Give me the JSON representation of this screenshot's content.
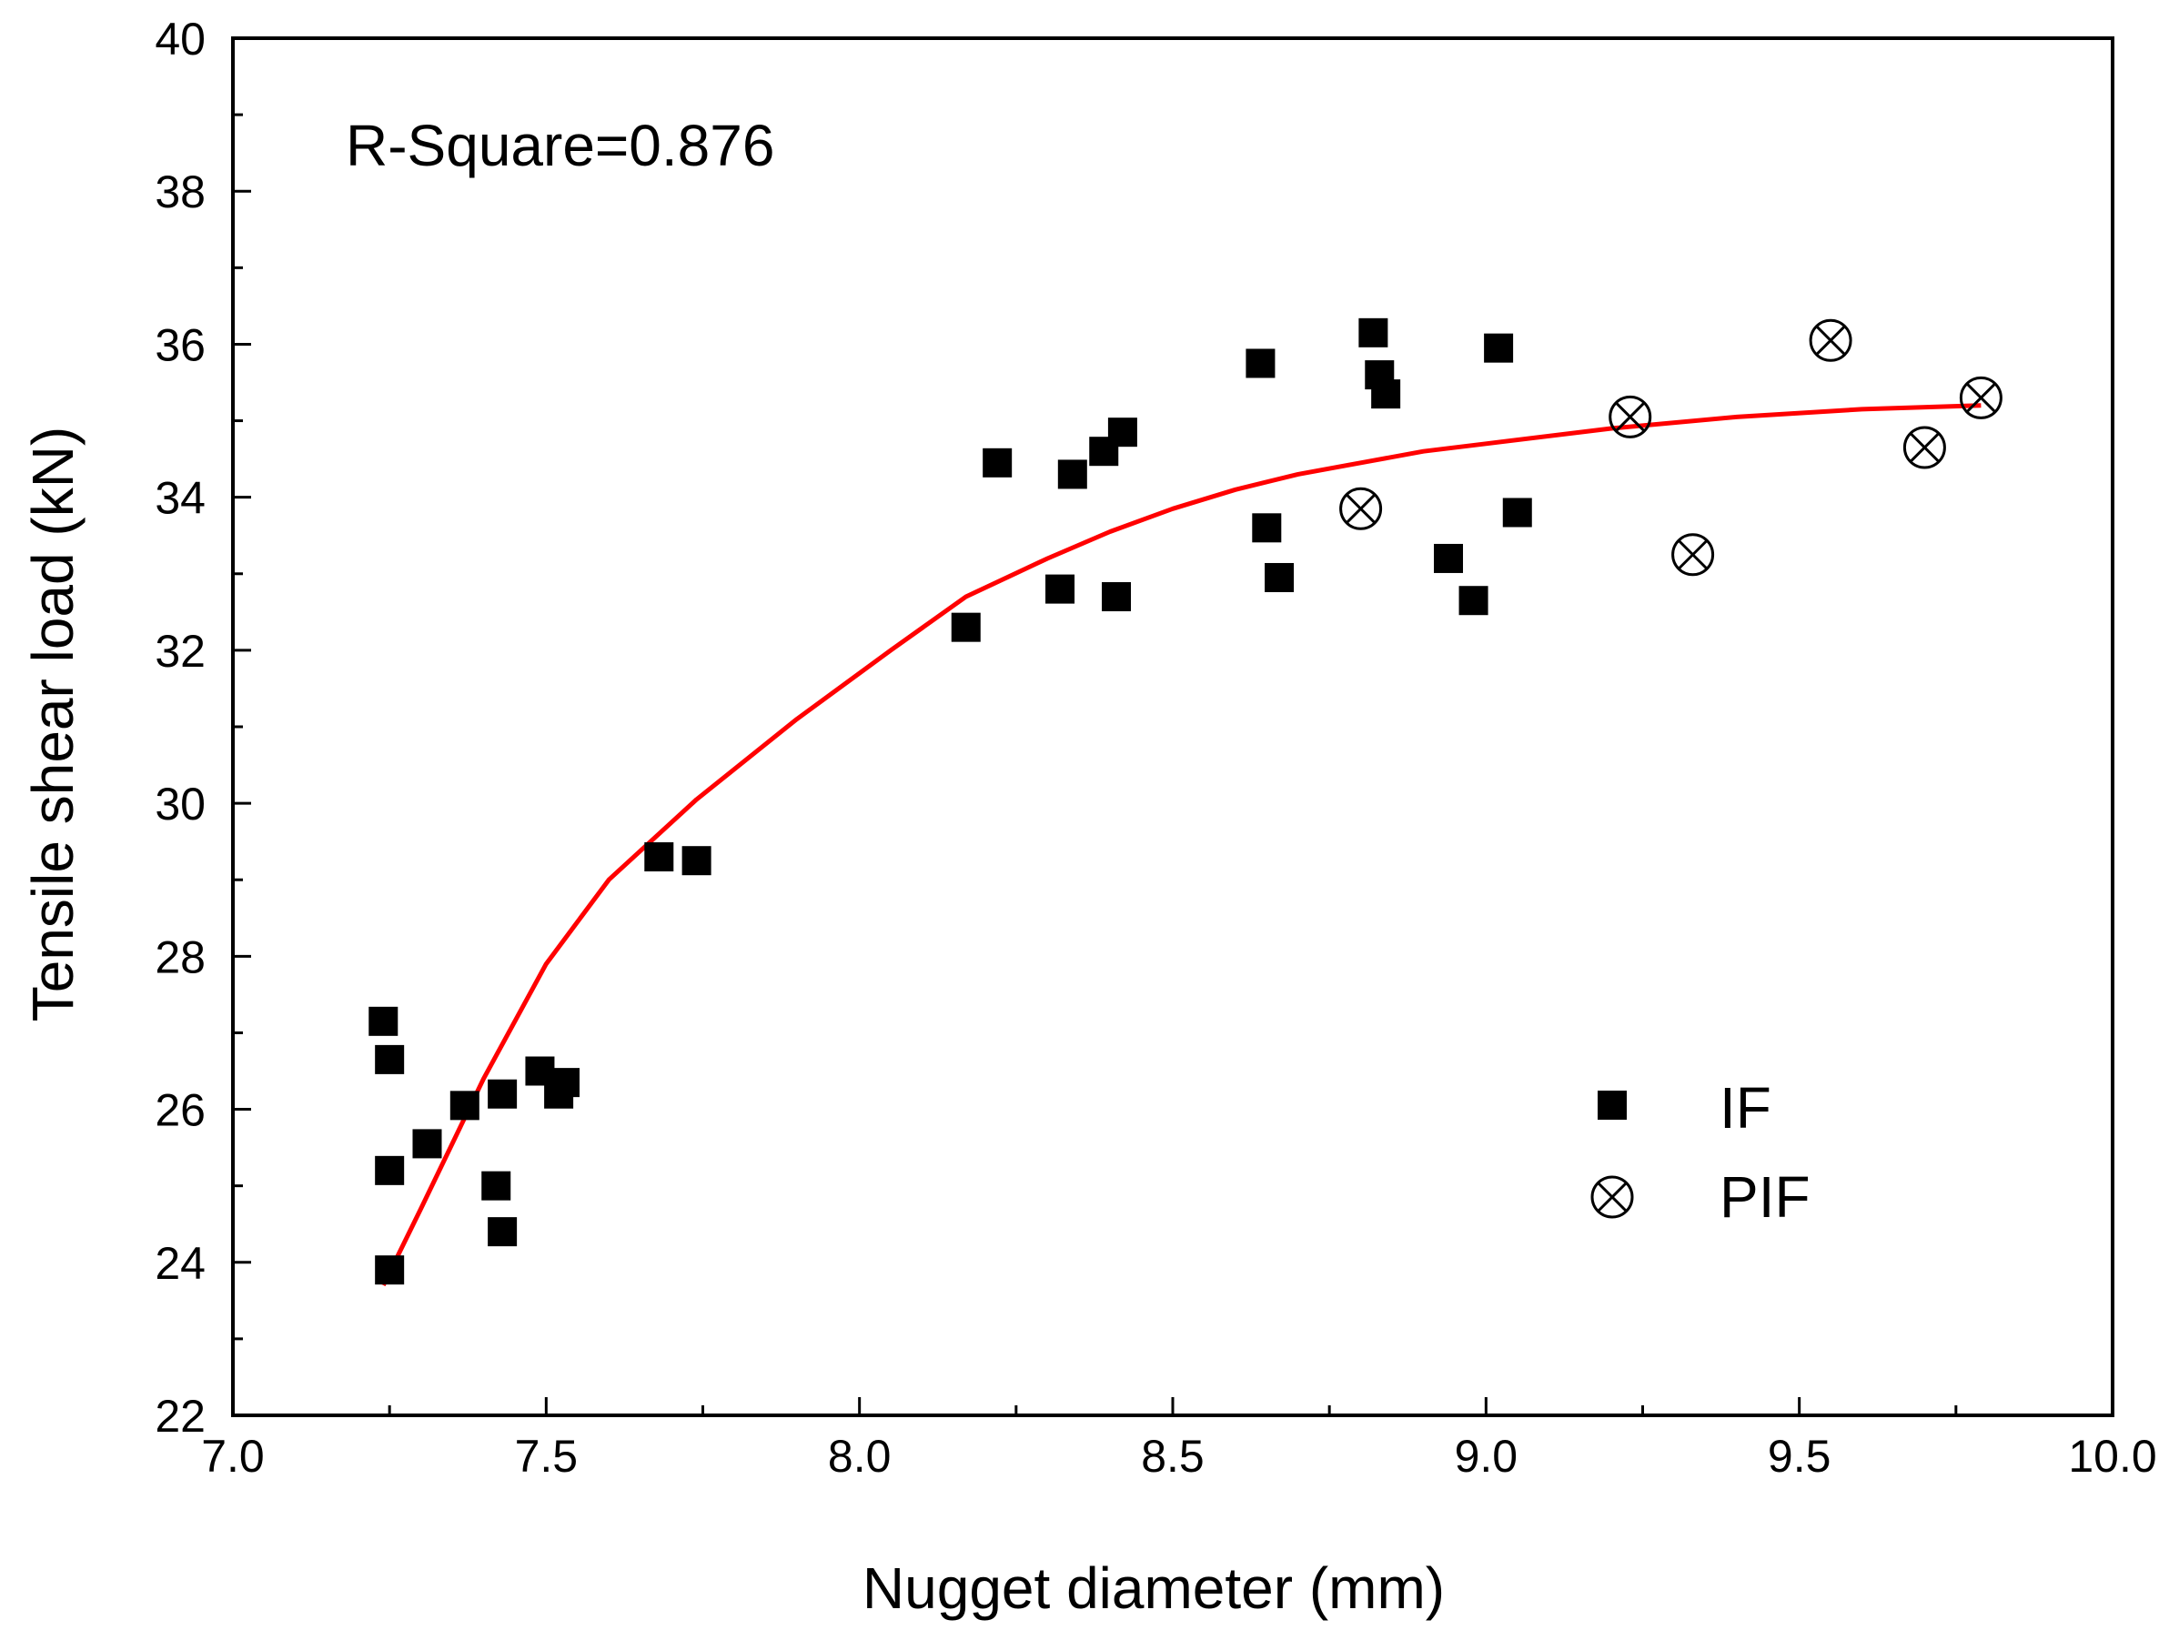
{
  "chart_data": {
    "type": "scatter",
    "title": "",
    "xlabel": "Nugget diameter (mm)",
    "ylabel": "Tensile shear load (kN)",
    "xlim": [
      7.0,
      10.0
    ],
    "ylim": [
      22,
      40
    ],
    "x_ticks": [
      "7.0",
      "7.5",
      "8.0",
      "8.5",
      "9.0",
      "9.5",
      "10.0"
    ],
    "y_ticks": [
      "22",
      "24",
      "26",
      "28",
      "30",
      "32",
      "34",
      "36",
      "38",
      "40"
    ],
    "annotation": "R-Square=0.876",
    "legend_position": "bottom-right",
    "colors": {
      "fit": "#ff0000",
      "markers": "#000000"
    },
    "series": [
      {
        "name": "IF",
        "marker": "filled-square",
        "points": [
          [
            7.24,
            27.15
          ],
          [
            7.25,
            26.65
          ],
          [
            7.25,
            25.2
          ],
          [
            7.25,
            23.9
          ],
          [
            7.31,
            25.55
          ],
          [
            7.37,
            26.05
          ],
          [
            7.42,
            25.0
          ],
          [
            7.43,
            24.4
          ],
          [
            7.43,
            26.2
          ],
          [
            7.49,
            26.5
          ],
          [
            7.52,
            26.2
          ],
          [
            7.53,
            26.35
          ],
          [
            7.68,
            29.3
          ],
          [
            7.74,
            29.25
          ],
          [
            8.17,
            32.3
          ],
          [
            8.22,
            34.45
          ],
          [
            8.32,
            32.8
          ],
          [
            8.34,
            34.3
          ],
          [
            8.39,
            34.6
          ],
          [
            8.41,
            32.7
          ],
          [
            8.42,
            34.85
          ],
          [
            8.64,
            35.75
          ],
          [
            8.65,
            33.6
          ],
          [
            8.67,
            32.95
          ],
          [
            8.82,
            36.15
          ],
          [
            8.83,
            35.6
          ],
          [
            8.84,
            35.35
          ],
          [
            8.94,
            33.2
          ],
          [
            8.98,
            32.65
          ],
          [
            9.02,
            35.95
          ],
          [
            9.05,
            33.8
          ]
        ]
      },
      {
        "name": "PIF",
        "marker": "circled-x",
        "points": [
          [
            8.8,
            33.85
          ],
          [
            9.23,
            35.05
          ],
          [
            9.33,
            33.25
          ],
          [
            9.55,
            36.05
          ],
          [
            9.7,
            34.65
          ],
          [
            9.79,
            35.3
          ]
        ]
      },
      {
        "name": "Fit",
        "marker": "line",
        "points": [
          [
            7.24,
            23.7
          ],
          [
            7.3,
            24.7
          ],
          [
            7.4,
            26.4
          ],
          [
            7.5,
            27.9
          ],
          [
            7.6,
            29.0
          ],
          [
            7.74,
            30.05
          ],
          [
            7.9,
            31.1
          ],
          [
            8.05,
            32.0
          ],
          [
            8.17,
            32.7
          ],
          [
            8.3,
            33.2
          ],
          [
            8.4,
            33.55
          ],
          [
            8.5,
            33.85
          ],
          [
            8.6,
            34.1
          ],
          [
            8.7,
            34.3
          ],
          [
            8.8,
            34.45
          ],
          [
            8.9,
            34.6
          ],
          [
            9.0,
            34.7
          ],
          [
            9.2,
            34.9
          ],
          [
            9.4,
            35.05
          ],
          [
            9.6,
            35.15
          ],
          [
            9.79,
            35.2
          ]
        ]
      }
    ]
  }
}
